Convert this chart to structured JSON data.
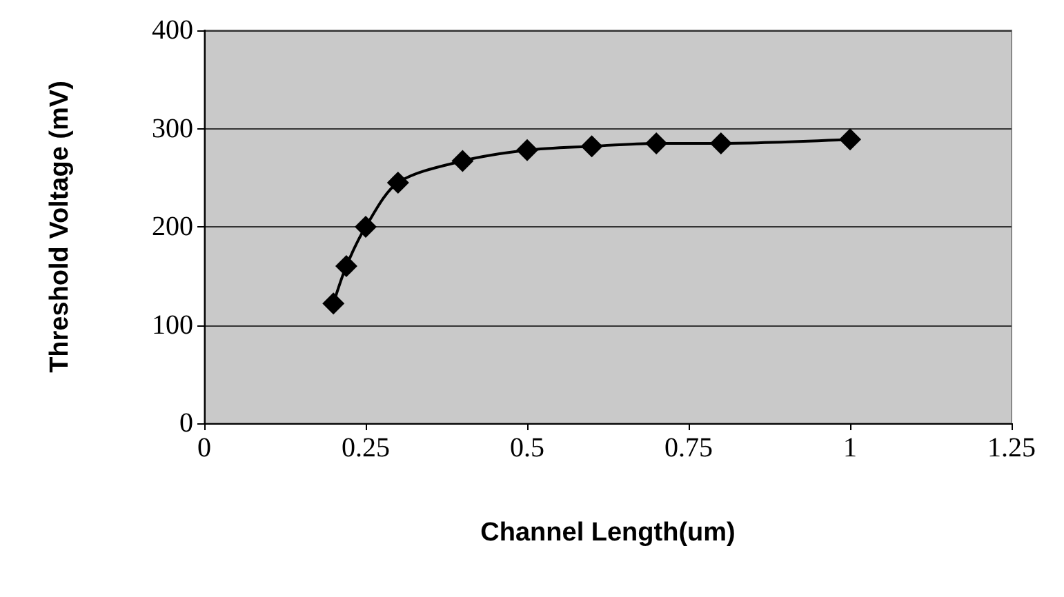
{
  "chart_data": {
    "type": "line",
    "xlabel": "Channel Length(um)",
    "ylabel": "Threshold Voltage (mV)",
    "series": [
      {
        "color": "#000000",
        "x": [
          0.2,
          0.22,
          0.25,
          0.3,
          0.4,
          0.5,
          0.6,
          0.7,
          0.8,
          1.0
        ],
        "values": [
          122,
          160,
          200,
          245,
          267,
          278,
          282,
          285,
          285,
          289
        ]
      }
    ],
    "xlim": [
      0,
      1.25
    ],
    "xticks": [
      0,
      0.25,
      0.5,
      0.75,
      1,
      1.25
    ],
    "ylim": [
      0,
      400
    ],
    "yticks": [
      0,
      100,
      200,
      300,
      400
    ],
    "grid": "y",
    "marker": "diamond",
    "line_style": "solid"
  }
}
